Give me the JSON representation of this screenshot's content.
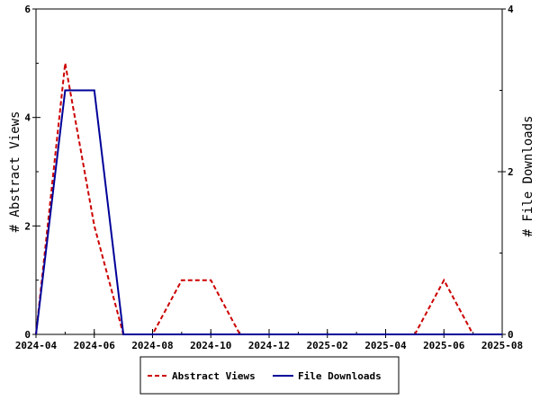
{
  "chart_data": {
    "type": "line",
    "x": [
      "2024-04",
      "2024-05",
      "2024-06",
      "2024-07",
      "2024-08",
      "2024-09",
      "2024-10",
      "2024-11",
      "2024-12",
      "2025-01",
      "2025-02",
      "2025-03",
      "2025-04",
      "2025-05",
      "2025-06",
      "2025-07",
      "2025-08"
    ],
    "x_ticks": [
      "2024-04",
      "2024-06",
      "2024-08",
      "2024-10",
      "2024-12",
      "2025-02",
      "2025-04",
      "2025-06",
      "2025-08"
    ],
    "series": [
      {
        "name": "Abstract Views",
        "axis": "left",
        "color": "#cc0000",
        "dash": "dashed",
        "values": [
          0,
          5,
          2,
          0,
          0,
          1,
          1,
          0,
          0,
          0,
          0,
          0,
          0,
          0,
          1,
          0,
          0
        ]
      },
      {
        "name": "File Downloads",
        "axis": "left",
        "color": "#000099",
        "dash": "solid",
        "values": [
          0,
          4.5,
          4.5,
          0,
          0,
          0,
          0,
          0,
          0,
          0,
          0,
          0,
          0,
          0,
          0,
          0,
          0
        ]
      }
    ],
    "ylabel_left": "# Abstract Views",
    "ylabel_right": "# File Downloads",
    "ylim_left": [
      0,
      6
    ],
    "yticks_left": [
      "0",
      "2",
      "4",
      "6"
    ],
    "ylim_right": [
      0,
      4
    ],
    "yticks_right": [
      "0",
      "2",
      "4"
    ],
    "grid": false,
    "legend_position": "bottom"
  }
}
